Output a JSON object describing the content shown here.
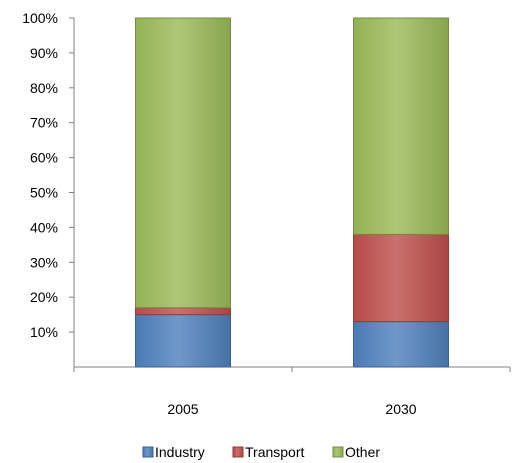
{
  "chart_data": {
    "type": "bar",
    "stacked": true,
    "categories": [
      "2005",
      "2030"
    ],
    "series": [
      {
        "name": "Industry",
        "values": [
          15,
          13
        ],
        "color": "#4F81BD"
      },
      {
        "name": "Transport",
        "values": [
          2,
          25
        ],
        "color": "#C0504D"
      },
      {
        "name": "Other",
        "values": [
          83,
          62
        ],
        "color": "#9BBB59"
      }
    ],
    "ylim": [
      0,
      100
    ],
    "yticks": [
      "100%",
      "90%",
      "80%",
      "70%",
      "60%",
      "50%",
      "40%",
      "30%",
      "20%",
      "10%"
    ],
    "grid": false,
    "legend_position": "bottom"
  }
}
